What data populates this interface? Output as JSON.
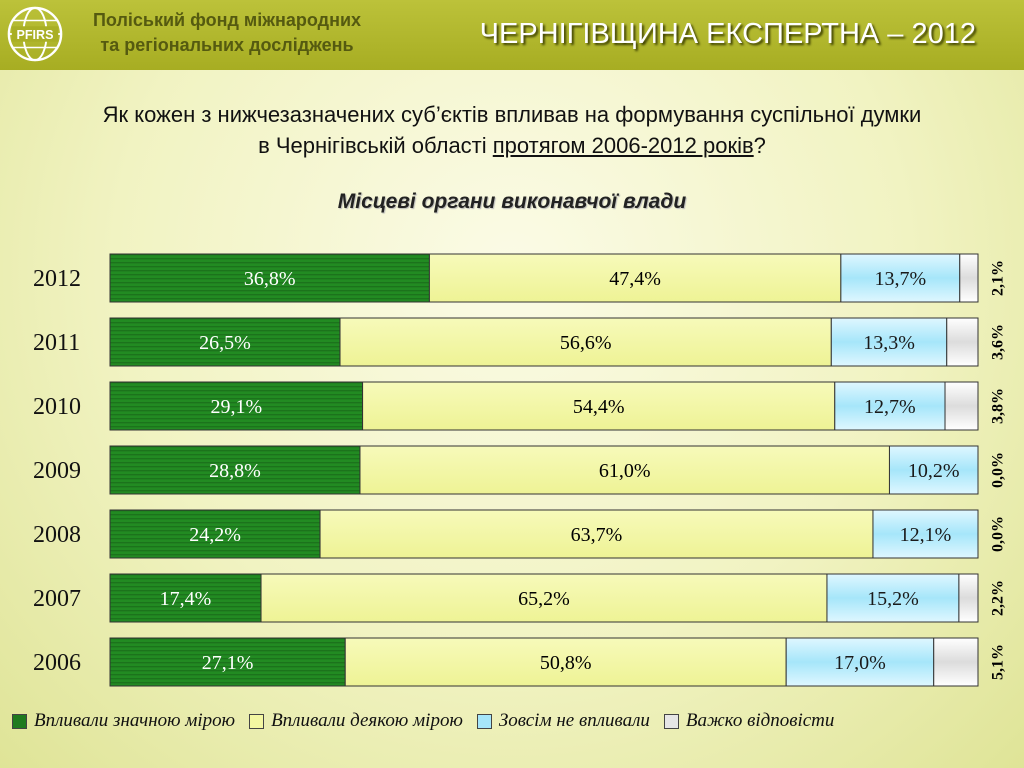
{
  "header": {
    "logo_text": "PFIRS",
    "org_line1": "Поліський фонд міжнародних",
    "org_line2": "та регіональних досліджень",
    "brand_title": "ЧЕРНІГІВЩИНА ЕКСПЕРТНА – 2012"
  },
  "question": {
    "line1": "Як кожен з нижчезазначених суб’єктів впливав на формування суспільної думки",
    "line2_prefix": "в Чернігівській області ",
    "line2_underlined": "протягом 2006-2012 років",
    "line2_suffix": "?"
  },
  "subtitle": "Місцеві органи виконавчої влади",
  "chart_data": {
    "type": "bar",
    "orientation": "horizontal",
    "stacked": true,
    "percent_stacked": true,
    "categories": [
      "2012",
      "2011",
      "2010",
      "2009",
      "2008",
      "2007",
      "2006"
    ],
    "series": [
      {
        "name": "Впливали значною мірою",
        "color": "#1f7a1f",
        "values": [
          36.8,
          26.5,
          29.1,
          28.8,
          24.2,
          17.4,
          27.1
        ]
      },
      {
        "name": "Впливали деякою мірою",
        "color": "#f3f7a2",
        "values": [
          47.4,
          56.6,
          54.4,
          61.0,
          63.7,
          65.2,
          50.8
        ]
      },
      {
        "name": "Зовсім не впливали",
        "color": "#a6e6fa",
        "values": [
          13.7,
          13.3,
          12.7,
          10.2,
          12.1,
          15.2,
          17.0
        ]
      },
      {
        "name": "Важко відповісти",
        "color": "#e6e6e6",
        "values": [
          2.1,
          3.6,
          3.8,
          0.0,
          0.0,
          2.2,
          5.1
        ]
      }
    ],
    "data_labels": [
      [
        "36,8%",
        "47,4%",
        "13,7%",
        "2,1%"
      ],
      [
        "26,5%",
        "56,6%",
        "13,3%",
        "3,6%"
      ],
      [
        "29,1%",
        "54,4%",
        "12,7%",
        "3,8%"
      ],
      [
        "28,8%",
        "61,0%",
        "10,2%",
        "0,0%"
      ],
      [
        "24,2%",
        "63,7%",
        "12,1%",
        "0,0%"
      ],
      [
        "17,4%",
        "65,2%",
        "15,2%",
        "2,2%"
      ],
      [
        "27,1%",
        "50,8%",
        "17,0%",
        "5,1%"
      ]
    ],
    "legend_position": "bottom",
    "grid": false
  }
}
